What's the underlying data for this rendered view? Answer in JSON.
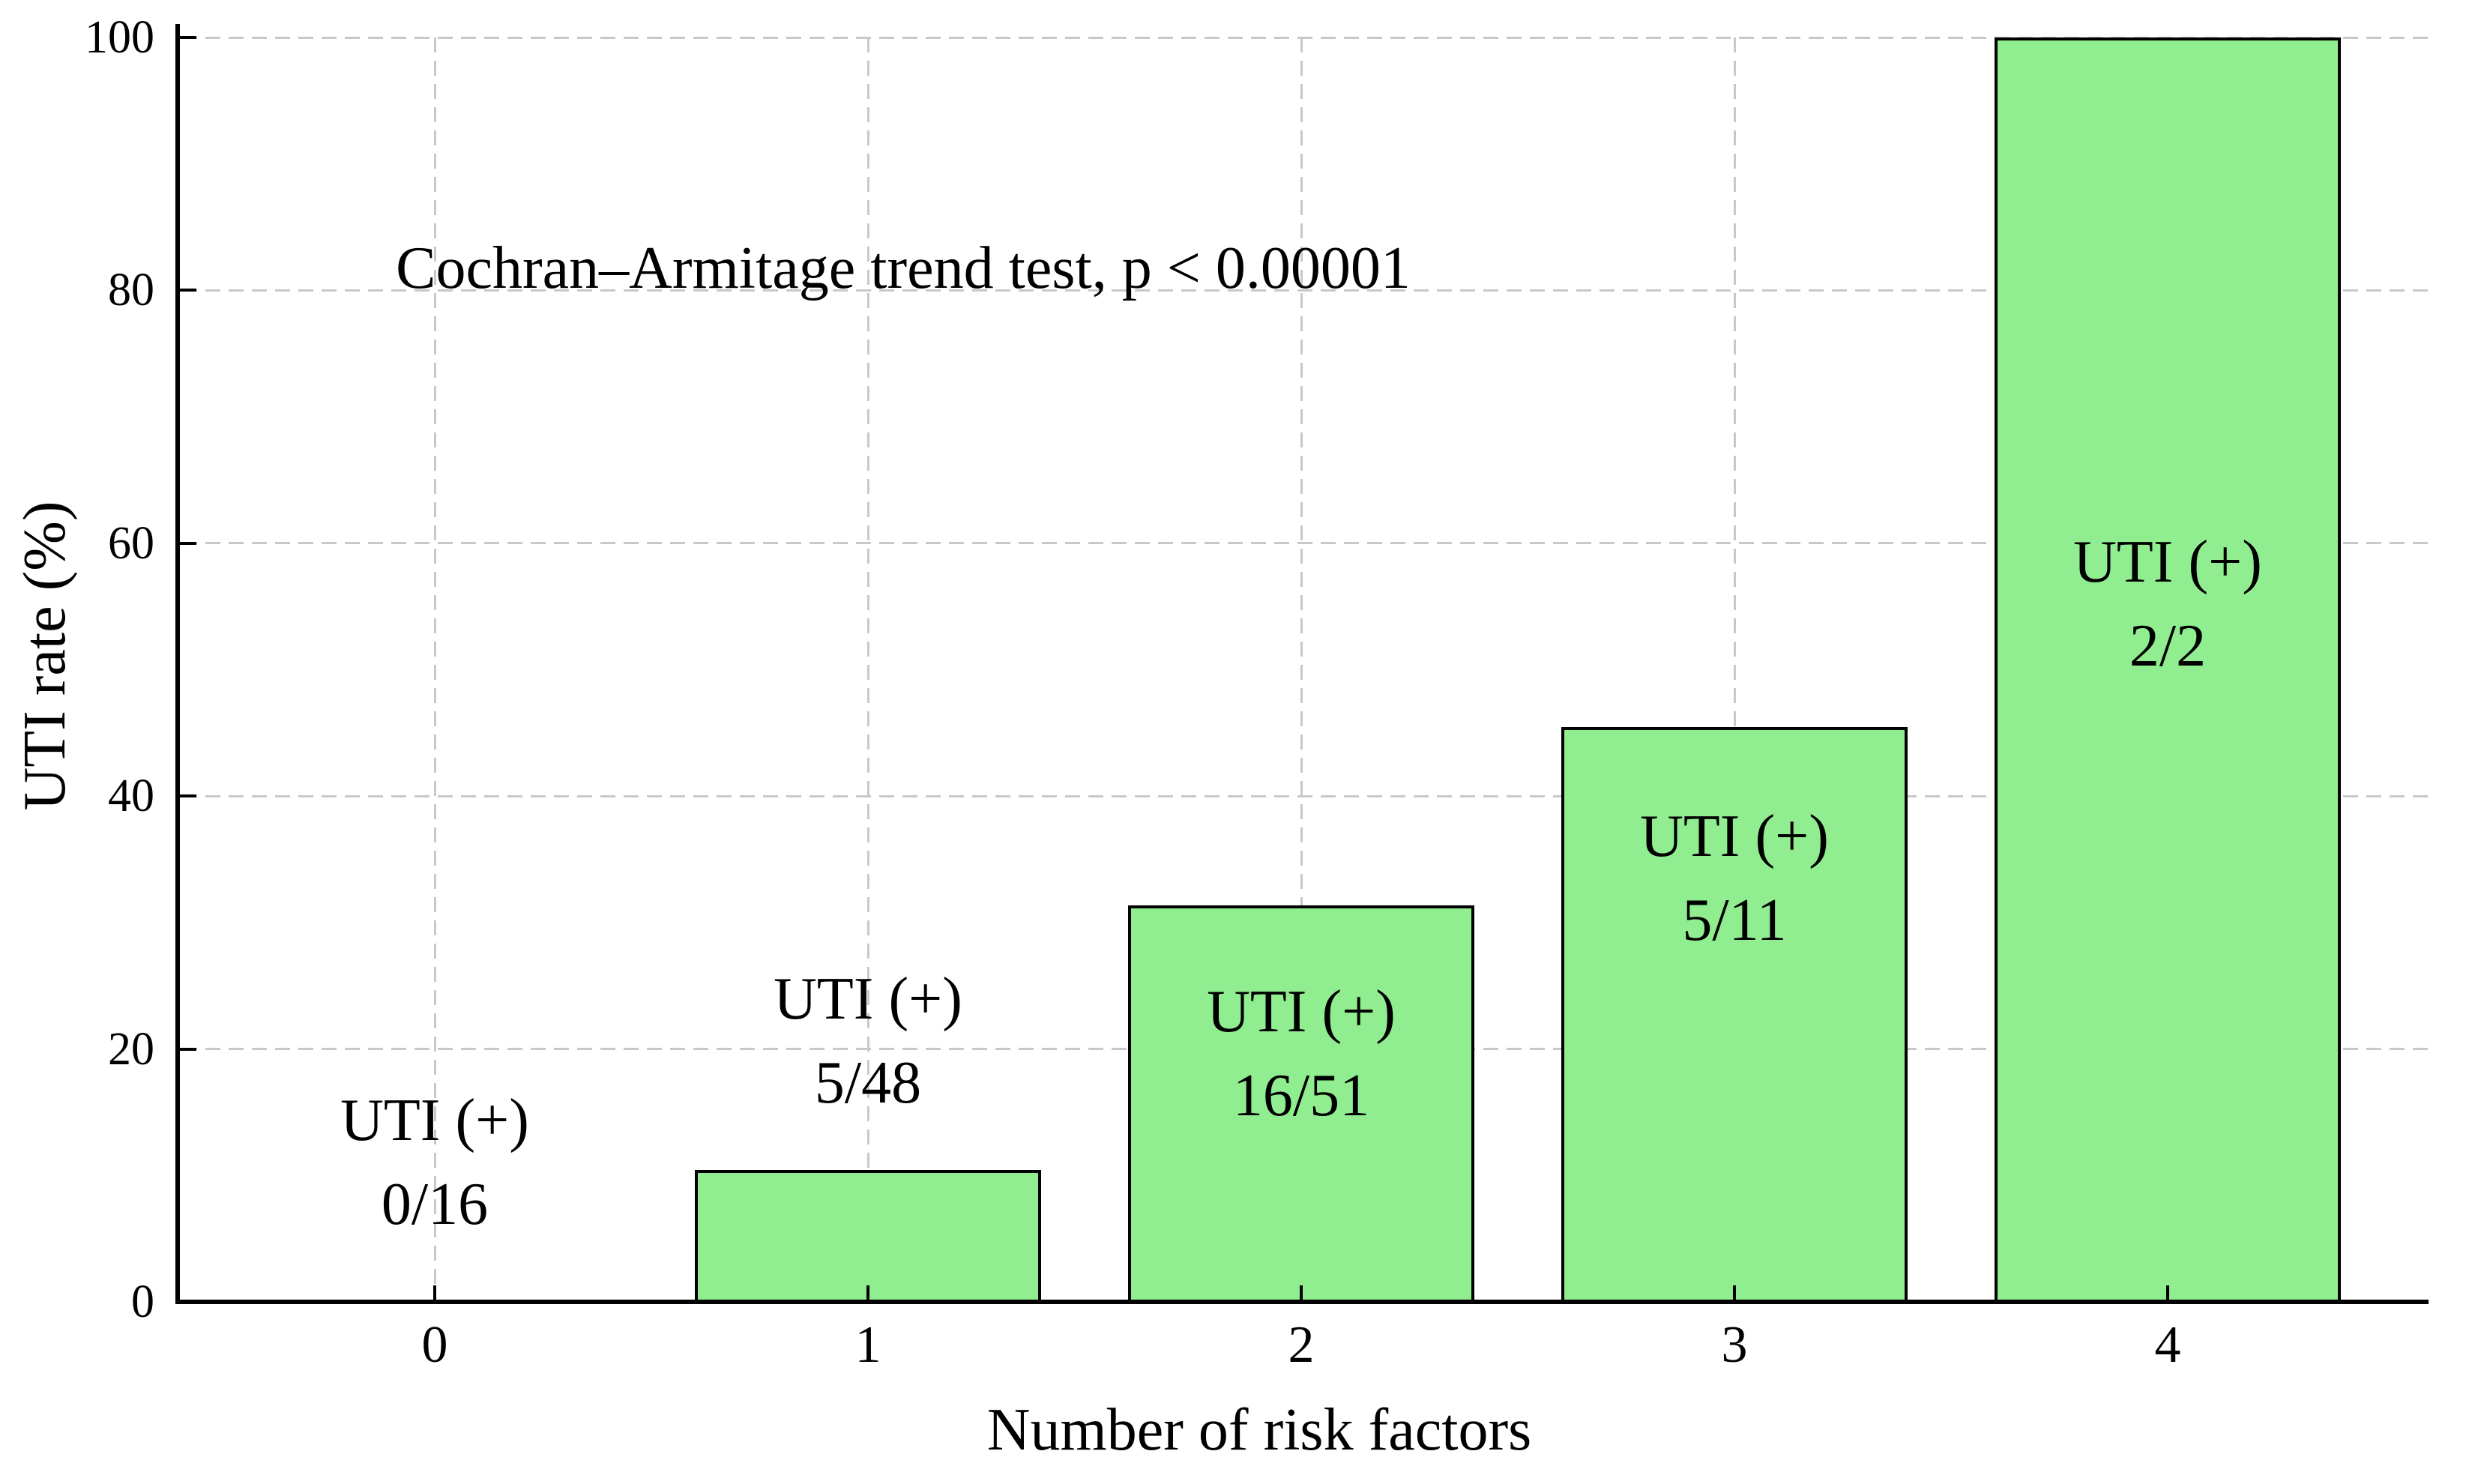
{
  "chart_data": {
    "type": "bar",
    "annotation": "Cochran–Armitage trend test, p < 0.00001",
    "xlabel": "Number of risk factors",
    "ylabel": "UTI rate (%)",
    "categories": [
      "0",
      "1",
      "2",
      "3",
      "4"
    ],
    "yticks": [
      0,
      20,
      40,
      60,
      80,
      100
    ],
    "ylim": [
      0,
      100
    ],
    "legend": "none",
    "grid": {
      "style": "dashed",
      "axes": "both",
      "color": "#c8c8c8"
    },
    "bars": [
      {
        "category": "0",
        "label": "UTI (+)",
        "count": "0/16",
        "numerator": 0,
        "denominator": 16,
        "value_pct": 0.0,
        "label_center_pct": 11.0
      },
      {
        "category": "1",
        "label": "UTI (+)",
        "count": "5/48",
        "numerator": 5,
        "denominator": 48,
        "value_pct": 10.42,
        "label_center_pct": 20.6
      },
      {
        "category": "2",
        "label": "UTI (+)",
        "count": "16/51",
        "numerator": 16,
        "denominator": 51,
        "value_pct": 31.37,
        "label_center_pct": 19.6
      },
      {
        "category": "3",
        "label": "UTI (+)",
        "count": "5/11",
        "numerator": 5,
        "denominator": 11,
        "value_pct": 45.45,
        "label_center_pct": 33.5
      },
      {
        "category": "4",
        "label": "UTI (+)",
        "count": "2/2",
        "numerator": 2,
        "denominator": 2,
        "value_pct": 100.0,
        "label_center_pct": 55.2
      }
    ],
    "colors": {
      "bar_fill": "#90EE90",
      "bar_edge": "#000000",
      "grid": "#c8c8c8",
      "spine": "#000000",
      "text": "#000000"
    }
  }
}
